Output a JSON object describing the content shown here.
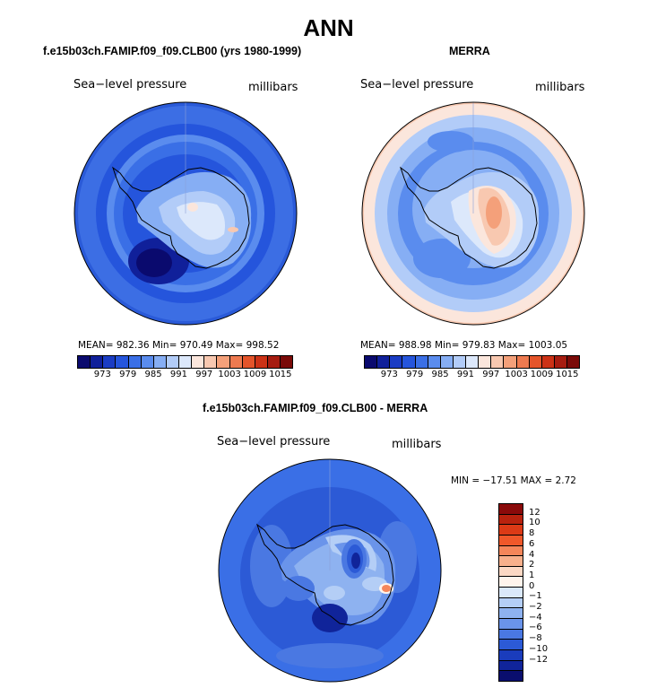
{
  "page_title": "ANN",
  "panels": {
    "model": {
      "title": "f.e15b03ch.FAMIP.f09_f09.CLB00 (yrs 1980-1999)",
      "variable": "Sea−level pressure",
      "units": "millibars",
      "stats": "MEAN= 982.36   Min= 970.49   Max= 998.52"
    },
    "obs": {
      "title": "MERRA",
      "variable": "Sea−level pressure",
      "units": "millibars",
      "stats": "MEAN= 988.98   Min= 979.83   Max= 1003.05"
    },
    "diff": {
      "title": "f.e15b03ch.FAMIP.f09_f09.CLB00 - MERRA",
      "variable": "Sea−level pressure",
      "units": "millibars",
      "minmax": "MIN = −17.51  MAX =    2.72"
    }
  },
  "abs_colorbar": {
    "colors": [
      "#0a0a6e",
      "#10209a",
      "#1a3cc4",
      "#2555dc",
      "#3a6fe6",
      "#5a8cee",
      "#86aef4",
      "#b2ccf8",
      "#dce8fb",
      "#fbe6dc",
      "#f8c8b0",
      "#f4a07a",
      "#ee7a50",
      "#e4542a",
      "#cc3216",
      "#a61c10",
      "#7a0a08"
    ],
    "ticks": [
      "973",
      "979",
      "985",
      "991",
      "997",
      "1003",
      "1009",
      "1015"
    ]
  },
  "diff_colorbar": {
    "colors_top_to_bottom": [
      "#8a0a0a",
      "#b8220e",
      "#dc3a16",
      "#f0582a",
      "#f5865a",
      "#f8b08c",
      "#fcd8c4",
      "#fff4ec",
      "#dae8fa",
      "#b4cef6",
      "#8eb2f0",
      "#6a94ea",
      "#4a78e2",
      "#2c5ad6",
      "#1a3cbc",
      "#10249a",
      "#0a0e6e"
    ],
    "ticks": [
      "12",
      "10",
      "8",
      "6",
      "4",
      "2",
      "1",
      "0",
      "−1",
      "−2",
      "−4",
      "−6",
      "−8",
      "−10",
      "−12"
    ]
  }
}
